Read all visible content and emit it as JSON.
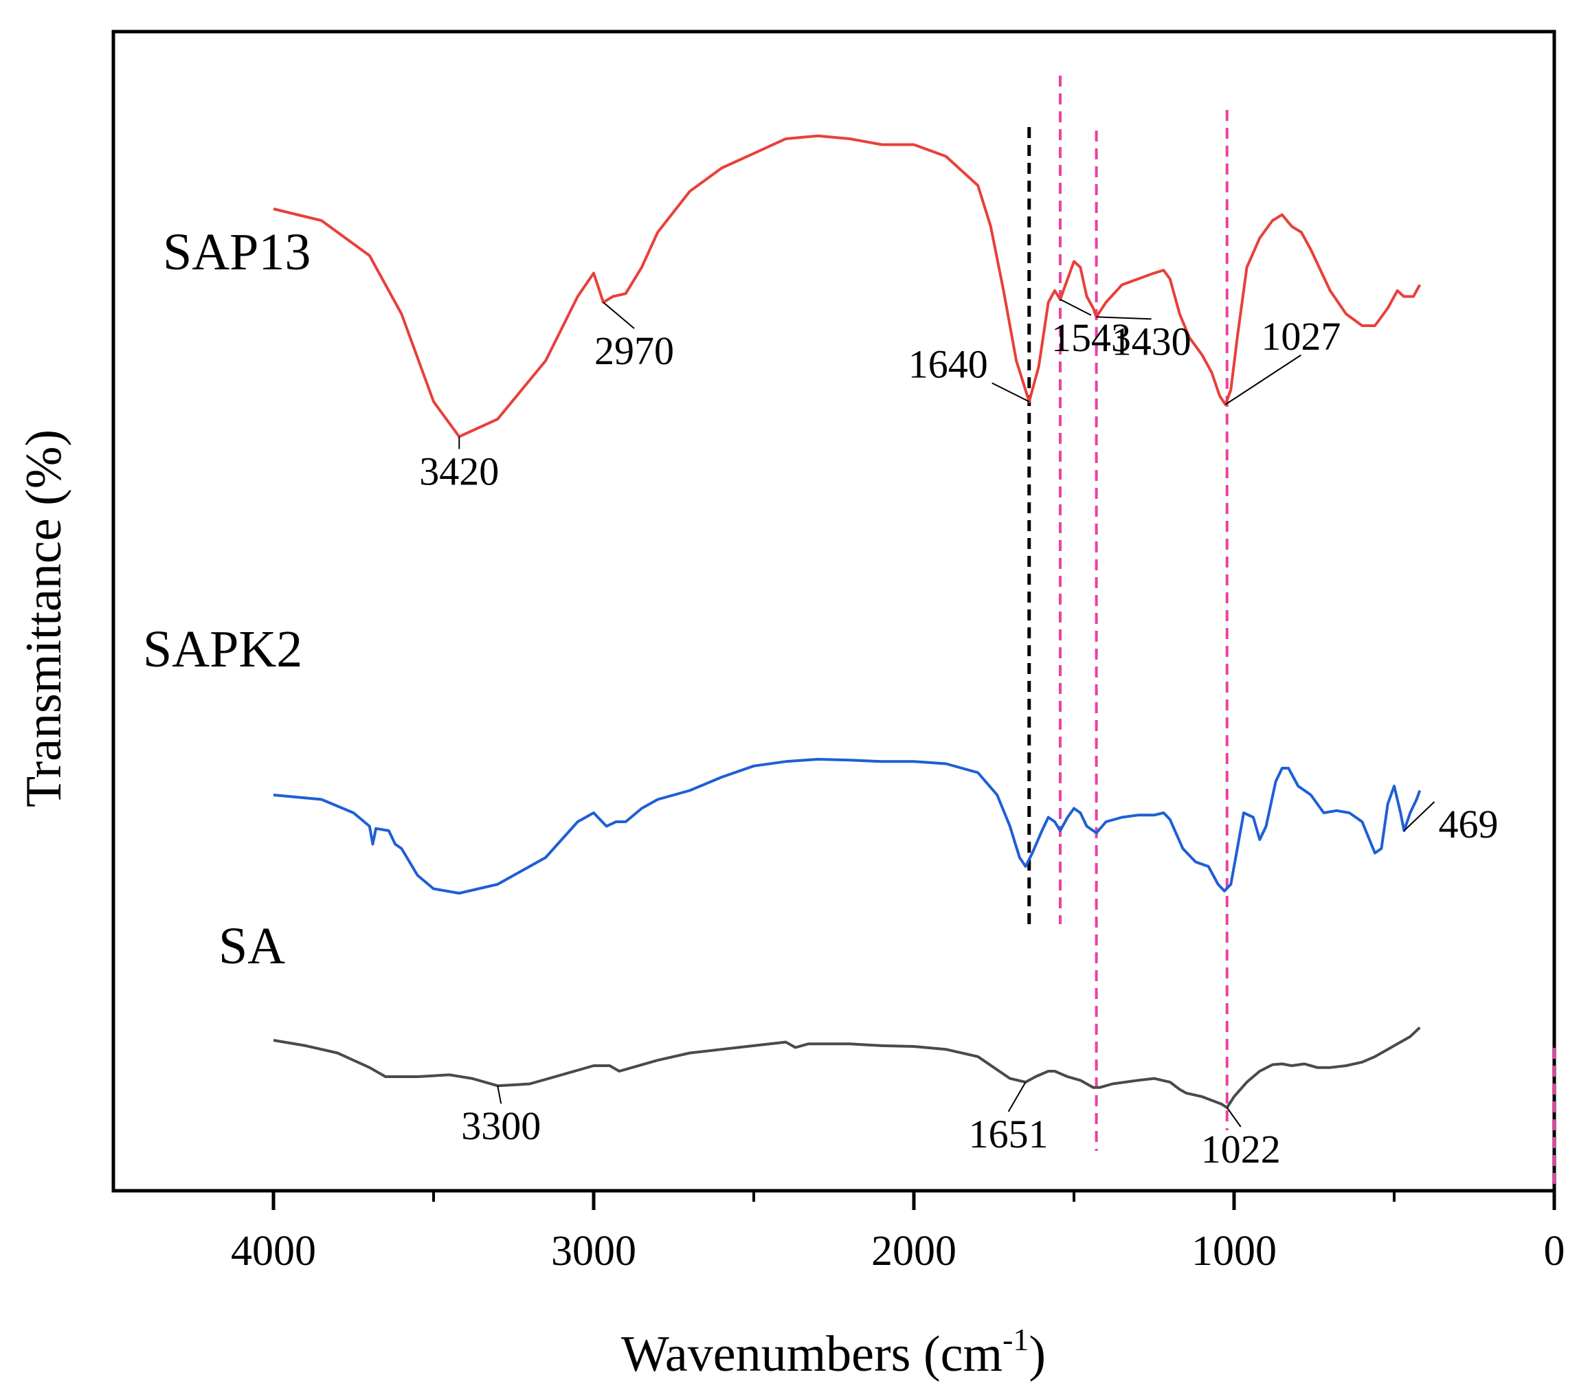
{
  "chart_data": {
    "type": "line",
    "title": "",
    "xlabel": "Wavenumbers (cm",
    "xlabel_sup": "-1",
    "xlabel_end": ")",
    "ylabel": "Transmittance (%)",
    "xlim": [
      4500,
      0
    ],
    "ylim": [
      0,
      100
    ],
    "x_ticks": [
      4000,
      3000,
      2000,
      1000,
      0
    ],
    "x_tick_labels": [
      "4000",
      "3000",
      "2000",
      "1000",
      "0"
    ],
    "x_minor_ticks": [
      3500,
      2500,
      1500,
      500
    ],
    "grid": false,
    "legend": "none",
    "series": [
      {
        "name": "SAP13",
        "color": "#e8403a",
        "points": [
          [
            4000,
            76
          ],
          [
            3850,
            74
          ],
          [
            3700,
            68
          ],
          [
            3600,
            58
          ],
          [
            3500,
            43
          ],
          [
            3420,
            37
          ],
          [
            3300,
            40
          ],
          [
            3150,
            50
          ],
          [
            3050,
            61
          ],
          [
            3000,
            65
          ],
          [
            2970,
            60
          ],
          [
            2940,
            61
          ],
          [
            2900,
            61.5
          ],
          [
            2850,
            66
          ],
          [
            2800,
            72
          ],
          [
            2700,
            79
          ],
          [
            2600,
            83
          ],
          [
            2500,
            85.5
          ],
          [
            2400,
            88
          ],
          [
            2300,
            88.5
          ],
          [
            2200,
            88
          ],
          [
            2100,
            87
          ],
          [
            2000,
            87
          ],
          [
            1900,
            85
          ],
          [
            1800,
            80
          ],
          [
            1760,
            73
          ],
          [
            1720,
            62
          ],
          [
            1680,
            50
          ],
          [
            1640,
            43
          ],
          [
            1610,
            49
          ],
          [
            1580,
            60
          ],
          [
            1560,
            62
          ],
          [
            1543,
            60.5
          ],
          [
            1520,
            64
          ],
          [
            1500,
            67
          ],
          [
            1480,
            66
          ],
          [
            1460,
            61
          ],
          [
            1440,
            59
          ],
          [
            1430,
            57.5
          ],
          [
            1400,
            60
          ],
          [
            1350,
            63
          ],
          [
            1300,
            64
          ],
          [
            1250,
            65
          ],
          [
            1220,
            65.5
          ],
          [
            1200,
            64
          ],
          [
            1170,
            58
          ],
          [
            1140,
            54
          ],
          [
            1100,
            51
          ],
          [
            1070,
            48
          ],
          [
            1045,
            44
          ],
          [
            1027,
            42.5
          ],
          [
            1010,
            45
          ],
          [
            990,
            54
          ],
          [
            960,
            66
          ],
          [
            920,
            71
          ],
          [
            880,
            74
          ],
          [
            850,
            75
          ],
          [
            820,
            73
          ],
          [
            790,
            72
          ],
          [
            760,
            69
          ],
          [
            700,
            62
          ],
          [
            650,
            58
          ],
          [
            600,
            56
          ],
          [
            560,
            56
          ],
          [
            520,
            59
          ],
          [
            490,
            62
          ],
          [
            470,
            61
          ],
          [
            440,
            61
          ],
          [
            420,
            63
          ]
        ]
      },
      {
        "name": "SAPK2",
        "color": "#1f5fd4",
        "points": [
          [
            4000,
            42
          ],
          [
            3850,
            41
          ],
          [
            3750,
            38
          ],
          [
            3700,
            35
          ],
          [
            3690,
            31
          ],
          [
            3680,
            34.5
          ],
          [
            3640,
            34
          ],
          [
            3620,
            31
          ],
          [
            3600,
            30
          ],
          [
            3550,
            24
          ],
          [
            3500,
            21
          ],
          [
            3420,
            20
          ],
          [
            3300,
            22
          ],
          [
            3150,
            28
          ],
          [
            3050,
            36
          ],
          [
            3000,
            38
          ],
          [
            2960,
            35
          ],
          [
            2930,
            36
          ],
          [
            2900,
            36
          ],
          [
            2850,
            39
          ],
          [
            2800,
            41
          ],
          [
            2700,
            43
          ],
          [
            2600,
            46
          ],
          [
            2500,
            48.5
          ],
          [
            2400,
            49.5
          ],
          [
            2300,
            50
          ],
          [
            2200,
            49.8
          ],
          [
            2100,
            49.5
          ],
          [
            2000,
            49.5
          ],
          [
            1900,
            49
          ],
          [
            1800,
            47
          ],
          [
            1740,
            42
          ],
          [
            1700,
            35
          ],
          [
            1670,
            28
          ],
          [
            1651,
            26
          ],
          [
            1630,
            29
          ],
          [
            1600,
            34
          ],
          [
            1580,
            37
          ],
          [
            1560,
            36
          ],
          [
            1543,
            34
          ],
          [
            1520,
            37
          ],
          [
            1500,
            39
          ],
          [
            1480,
            38
          ],
          [
            1460,
            35
          ],
          [
            1440,
            34
          ],
          [
            1430,
            33.5
          ],
          [
            1400,
            36
          ],
          [
            1350,
            37
          ],
          [
            1300,
            37.5
          ],
          [
            1250,
            37.5
          ],
          [
            1220,
            38
          ],
          [
            1200,
            36.5
          ],
          [
            1160,
            30
          ],
          [
            1120,
            27
          ],
          [
            1080,
            26
          ],
          [
            1050,
            22
          ],
          [
            1030,
            20.5
          ],
          [
            1010,
            22
          ],
          [
            990,
            30
          ],
          [
            970,
            38
          ],
          [
            940,
            37
          ],
          [
            920,
            32
          ],
          [
            900,
            35
          ],
          [
            870,
            45
          ],
          [
            850,
            48
          ],
          [
            830,
            48
          ],
          [
            800,
            44
          ],
          [
            760,
            42
          ],
          [
            720,
            38
          ],
          [
            680,
            38.5
          ],
          [
            640,
            38
          ],
          [
            600,
            36
          ],
          [
            560,
            29
          ],
          [
            540,
            30
          ],
          [
            520,
            40
          ],
          [
            500,
            44
          ],
          [
            480,
            38
          ],
          [
            469,
            34
          ],
          [
            450,
            38
          ],
          [
            430,
            41
          ],
          [
            420,
            43
          ]
        ]
      },
      {
        "name": "SA",
        "color": "#4a4a4a",
        "points": [
          [
            4000,
            18.5
          ],
          [
            3900,
            17
          ],
          [
            3800,
            15
          ],
          [
            3700,
            11
          ],
          [
            3650,
            8.5
          ],
          [
            3550,
            8.5
          ],
          [
            3450,
            9
          ],
          [
            3380,
            8
          ],
          [
            3300,
            6
          ],
          [
            3200,
            6.5
          ],
          [
            3100,
            9
          ],
          [
            3000,
            11.5
          ],
          [
            2950,
            11.5
          ],
          [
            2920,
            10
          ],
          [
            2880,
            11
          ],
          [
            2800,
            13
          ],
          [
            2700,
            15
          ],
          [
            2600,
            16
          ],
          [
            2500,
            17
          ],
          [
            2400,
            18
          ],
          [
            2370,
            16.5
          ],
          [
            2330,
            17.5
          ],
          [
            2200,
            17.5
          ],
          [
            2100,
            17
          ],
          [
            2000,
            16.8
          ],
          [
            1900,
            16
          ],
          [
            1800,
            14
          ],
          [
            1750,
            11
          ],
          [
            1700,
            8
          ],
          [
            1651,
            7
          ],
          [
            1620,
            8.5
          ],
          [
            1580,
            10
          ],
          [
            1560,
            10
          ],
          [
            1520,
            8.5
          ],
          [
            1480,
            7.5
          ],
          [
            1440,
            5.5
          ],
          [
            1420,
            5.5
          ],
          [
            1380,
            6.5
          ],
          [
            1300,
            7.5
          ],
          [
            1250,
            8
          ],
          [
            1200,
            7
          ],
          [
            1170,
            5
          ],
          [
            1150,
            4
          ],
          [
            1100,
            3
          ],
          [
            1070,
            2
          ],
          [
            1040,
            1
          ],
          [
            1022,
            0
          ],
          [
            1000,
            3
          ],
          [
            960,
            7
          ],
          [
            920,
            10
          ],
          [
            880,
            11.8
          ],
          [
            850,
            12
          ],
          [
            820,
            11.5
          ],
          [
            780,
            12
          ],
          [
            740,
            11
          ],
          [
            700,
            11
          ],
          [
            650,
            11.5
          ],
          [
            600,
            12.5
          ],
          [
            560,
            14
          ],
          [
            520,
            16
          ],
          [
            480,
            18
          ],
          [
            450,
            19.5
          ],
          [
            420,
            22
          ]
        ]
      }
    ],
    "series_labels": [
      "SAP13",
      "SAPK2",
      "SA"
    ],
    "peak_annotations": [
      {
        "series": "SAP13",
        "x": 3420,
        "text": "3420"
      },
      {
        "series": "SAP13",
        "x": 2970,
        "text": "2970"
      },
      {
        "series": "SAP13",
        "x": 1640,
        "text": "1640"
      },
      {
        "series": "SAP13",
        "x": 1543,
        "text": "1543"
      },
      {
        "series": "SAP13",
        "x": 1430,
        "text": "1430"
      },
      {
        "series": "SAP13",
        "x": 1027,
        "text": "1027"
      },
      {
        "series": "SAPK2",
        "x": 469,
        "text": "469"
      },
      {
        "series": "SA",
        "x": 3300,
        "text": "3300"
      },
      {
        "series": "SA",
        "x": 1651,
        "text": "1651"
      },
      {
        "series": "SA",
        "x": 1022,
        "text": "1022"
      }
    ],
    "reference_lines": [
      {
        "x": 1640,
        "color": "#000000",
        "style": "dashed"
      },
      {
        "x": 1543,
        "color": "#ee3fa4",
        "style": "dashed"
      },
      {
        "x": 1430,
        "color": "#ee3fa4",
        "style": "dashed"
      },
      {
        "x": 1022,
        "color": "#ee3fa4",
        "style": "dashed"
      }
    ]
  }
}
